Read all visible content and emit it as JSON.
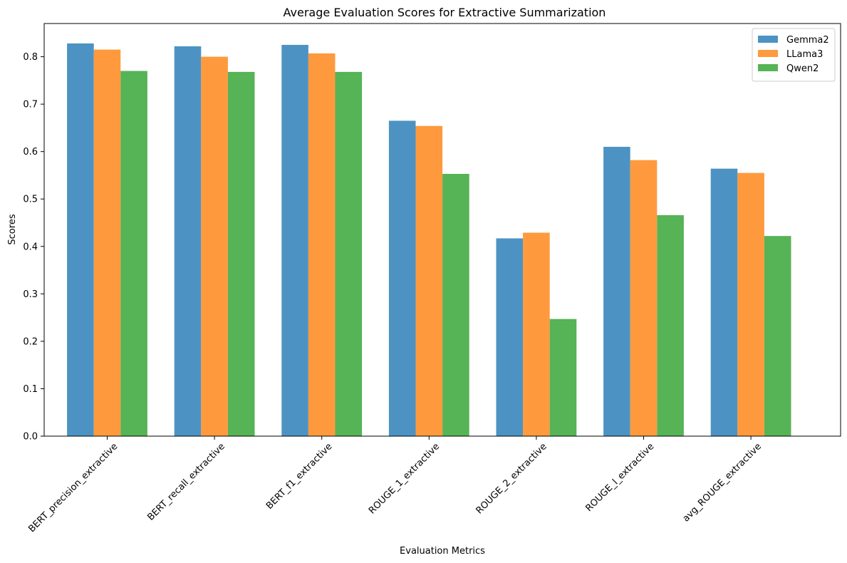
{
  "chart_data": {
    "type": "bar",
    "title": "Average Evaluation Scores for Extractive Summarization",
    "xlabel": "Evaluation Metrics",
    "ylabel": "Scores",
    "ylim": [
      0,
      0.87
    ],
    "yticks": [
      "0.0",
      "0.1",
      "0.2",
      "0.3",
      "0.4",
      "0.5",
      "0.6",
      "0.7",
      "0.8"
    ],
    "categories": [
      "BERT_precision_extractive",
      "BERT_recall_extractive",
      "BERT_f1_extractive",
      "ROUGE_1_extractive",
      "ROUGE_2_extractive",
      "ROUGE_l_extractive",
      "avg_ROUGE_extractive"
    ],
    "series": [
      {
        "name": "Gemma2",
        "color": "#4c93c3",
        "values": [
          0.828,
          0.822,
          0.825,
          0.665,
          0.417,
          0.61,
          0.564
        ]
      },
      {
        "name": "LLama3",
        "color": "#fe9a3d",
        "values": [
          0.815,
          0.8,
          0.807,
          0.654,
          0.429,
          0.582,
          0.555
        ]
      },
      {
        "name": "Qwen2",
        "color": "#56b356",
        "values": [
          0.77,
          0.768,
          0.768,
          0.553,
          0.247,
          0.466,
          0.422
        ]
      }
    ],
    "grid": false,
    "legend_position": "top-right"
  }
}
